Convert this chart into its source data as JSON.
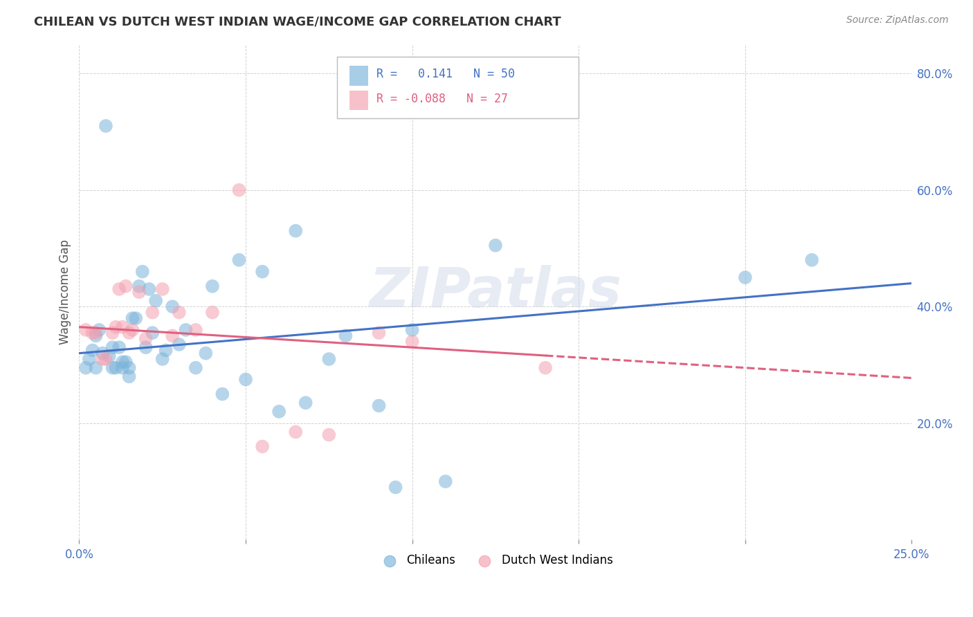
{
  "title": "CHILEAN VS DUTCH WEST INDIAN WAGE/INCOME GAP CORRELATION CHART",
  "source": "Source: ZipAtlas.com",
  "xlabel": "",
  "ylabel": "Wage/Income Gap",
  "xlim": [
    0.0,
    0.25
  ],
  "ylim": [
    0.0,
    0.85
  ],
  "xticks": [
    0.0,
    0.05,
    0.1,
    0.15,
    0.2,
    0.25
  ],
  "xticklabels": [
    "0.0%",
    "",
    "",
    "",
    "",
    "25.0%"
  ],
  "yticks": [
    0.2,
    0.4,
    0.6,
    0.8
  ],
  "yticklabels": [
    "20.0%",
    "40.0%",
    "60.0%",
    "80.0%"
  ],
  "background_color": "#ffffff",
  "watermark": "ZIPatlas",
  "chilean_color": "#7ab3d9",
  "dutch_color": "#f4a0b0",
  "chilean_line_color": "#4472c4",
  "dutch_line_color": "#e06080",
  "legend_r_chilean": "0.141",
  "legend_n_chilean": "50",
  "legend_r_dutch": "-0.088",
  "legend_n_dutch": "27",
  "chileans_x": [
    0.002,
    0.003,
    0.004,
    0.005,
    0.005,
    0.006,
    0.007,
    0.008,
    0.009,
    0.01,
    0.01,
    0.011,
    0.012,
    0.013,
    0.013,
    0.014,
    0.015,
    0.015,
    0.016,
    0.017,
    0.018,
    0.019,
    0.02,
    0.021,
    0.022,
    0.023,
    0.025,
    0.026,
    0.028,
    0.03,
    0.032,
    0.035,
    0.038,
    0.04,
    0.043,
    0.048,
    0.05,
    0.055,
    0.06,
    0.065,
    0.068,
    0.075,
    0.08,
    0.09,
    0.095,
    0.1,
    0.11,
    0.125,
    0.2,
    0.22
  ],
  "chileans_y": [
    0.295,
    0.31,
    0.325,
    0.295,
    0.35,
    0.36,
    0.32,
    0.71,
    0.315,
    0.295,
    0.33,
    0.295,
    0.33,
    0.305,
    0.295,
    0.305,
    0.28,
    0.295,
    0.38,
    0.38,
    0.435,
    0.46,
    0.33,
    0.43,
    0.355,
    0.41,
    0.31,
    0.325,
    0.4,
    0.335,
    0.36,
    0.295,
    0.32,
    0.435,
    0.25,
    0.48,
    0.275,
    0.46,
    0.22,
    0.53,
    0.235,
    0.31,
    0.35,
    0.23,
    0.09,
    0.36,
    0.1,
    0.505,
    0.45,
    0.48
  ],
  "dutch_x": [
    0.002,
    0.004,
    0.005,
    0.007,
    0.008,
    0.01,
    0.011,
    0.012,
    0.013,
    0.014,
    0.015,
    0.016,
    0.018,
    0.02,
    0.022,
    0.025,
    0.028,
    0.03,
    0.035,
    0.04,
    0.048,
    0.055,
    0.065,
    0.075,
    0.09,
    0.1,
    0.14
  ],
  "dutch_y": [
    0.36,
    0.355,
    0.355,
    0.31,
    0.31,
    0.355,
    0.365,
    0.43,
    0.365,
    0.435,
    0.355,
    0.36,
    0.425,
    0.345,
    0.39,
    0.43,
    0.35,
    0.39,
    0.36,
    0.39,
    0.6,
    0.16,
    0.185,
    0.18,
    0.355,
    0.34,
    0.295
  ],
  "chilean_intercept": 0.32,
  "chilean_slope": 0.48,
  "dutch_intercept": 0.365,
  "dutch_slope": -0.35
}
